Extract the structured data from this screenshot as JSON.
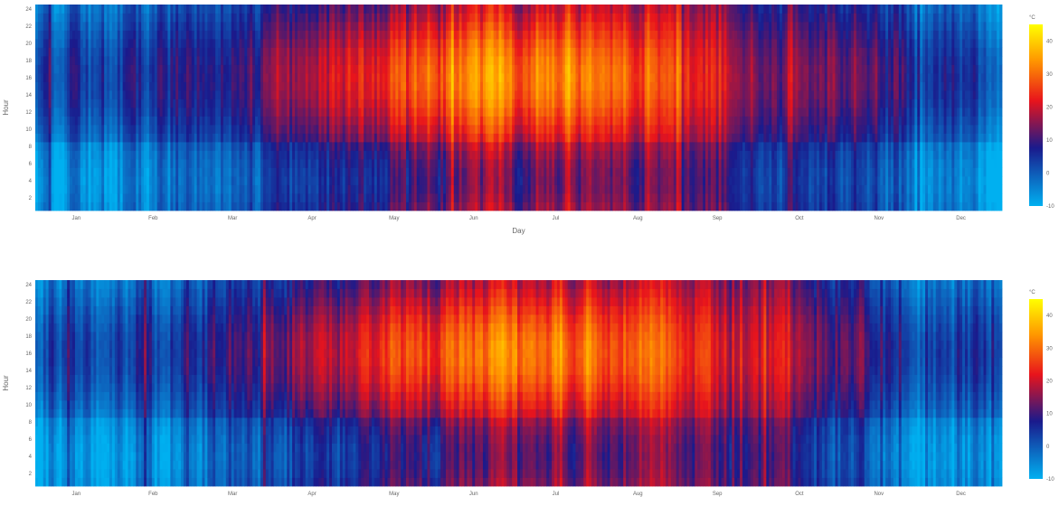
{
  "chart_data": [
    {
      "type": "heatmap",
      "title": "",
      "xlabel": "Day",
      "ylabel": "Hour",
      "x_tick_labels": [
        "Jan",
        "Feb",
        "Mar",
        "Apr",
        "May",
        "Jun",
        "Jul",
        "Aug",
        "Sep",
        "Oct",
        "Nov",
        "Dec"
      ],
      "y_tick_labels": [
        "2",
        "4",
        "6",
        "8",
        "10",
        "12",
        "14",
        "16",
        "18",
        "20",
        "22",
        "24"
      ],
      "y_ticks": [
        2,
        4,
        6,
        8,
        10,
        12,
        14,
        16,
        18,
        20,
        22,
        24
      ],
      "x_range": [
        1,
        365
      ],
      "y_range": [
        1,
        24
      ],
      "colorscale": [
        "#00b0f0",
        "#1a1a8c",
        "#e8141c",
        "#ff9600",
        "#ffff00"
      ],
      "colorbar": {
        "title": "°C",
        "range": [
          -10,
          45
        ],
        "tick_labels": [
          "-10",
          "0",
          "10",
          "20",
          "30",
          "40"
        ],
        "ticks": [
          -10,
          0,
          10,
          20,
          30,
          40
        ]
      }
    },
    {
      "type": "heatmap",
      "title": "",
      "xlabel": "",
      "ylabel": "Hour",
      "x_tick_labels": [
        "Jan",
        "Feb",
        "Mar",
        "Apr",
        "May",
        "Jun",
        "Jul",
        "Aug",
        "Sep",
        "Oct",
        "Nov",
        "Dec"
      ],
      "y_tick_labels": [
        "2",
        "4",
        "6",
        "8",
        "10",
        "12",
        "14",
        "16",
        "18",
        "20",
        "22",
        "24"
      ],
      "y_ticks": [
        2,
        4,
        6,
        8,
        10,
        12,
        14,
        16,
        18,
        20,
        22,
        24
      ],
      "x_range": [
        1,
        365
      ],
      "y_range": [
        1,
        24
      ],
      "colorscale": [
        "#00b0f0",
        "#1a1a8c",
        "#e8141c",
        "#ff9600",
        "#ffff00"
      ],
      "colorbar": {
        "title": "°C",
        "range": [
          -10,
          45
        ],
        "tick_labels": [
          "-10",
          "0",
          "10",
          "20",
          "30",
          "40"
        ],
        "ticks": [
          -10,
          0,
          10,
          20,
          30,
          40
        ]
      }
    }
  ]
}
